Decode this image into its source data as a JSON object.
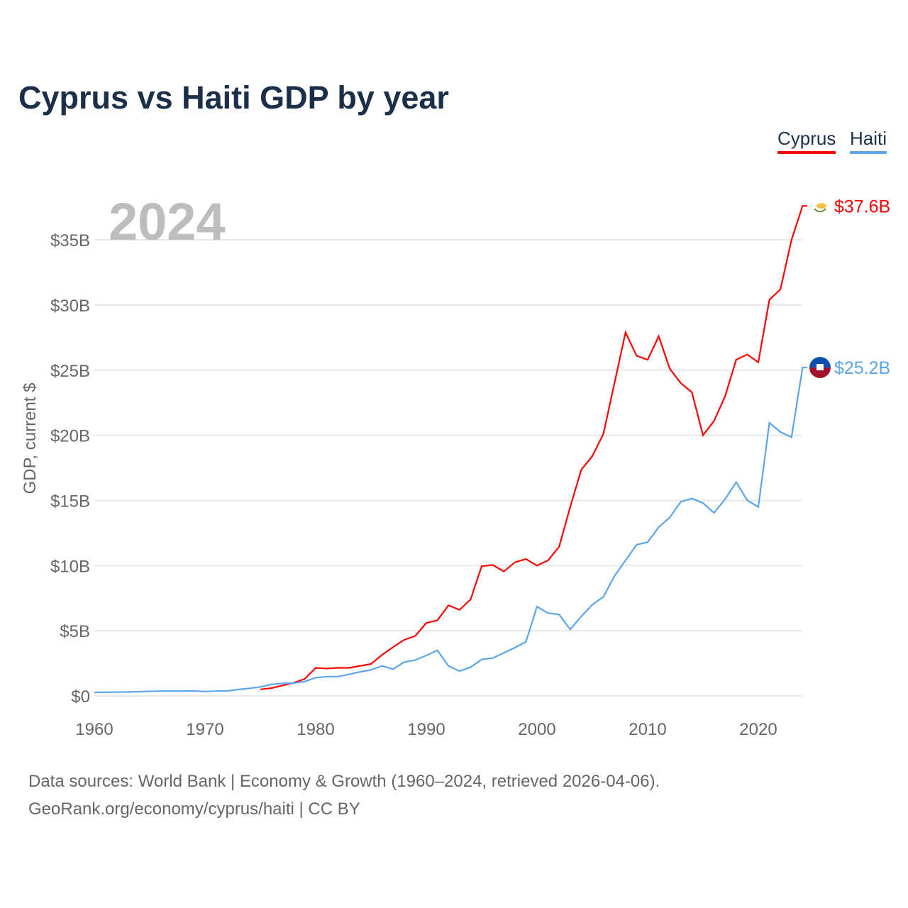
{
  "title": "Cyprus vs Haiti GDP by year",
  "legend": [
    {
      "label": "Cyprus",
      "color": "#ff0000"
    },
    {
      "label": "Haiti",
      "color": "#5aa5ec"
    }
  ],
  "source_line1": "Data sources: World Bank | Economy & Growth (1960–2024, retrieved 2026-04-06).",
  "source_line2": "GeoRank.org/economy/cyprus/haiti | CC BY",
  "chart_data": {
    "type": "line",
    "title": "Cyprus vs Haiti GDP by year",
    "xlabel": "",
    "ylabel": "GDP, current $",
    "year_label": "2024",
    "xlim": [
      1960,
      2024
    ],
    "ylim": [
      0,
      38
    ],
    "xticks": [
      1960,
      1970,
      1980,
      1990,
      2000,
      2010,
      2020
    ],
    "yticks": [
      0,
      5,
      10,
      15,
      20,
      25,
      30,
      35
    ],
    "ytick_labels": [
      "$0",
      "$5B",
      "$10B",
      "$15B",
      "$20B",
      "$25B",
      "$30B",
      "$35B"
    ],
    "grid": true,
    "legend_position": "top-right",
    "series": [
      {
        "name": "Cyprus",
        "color": "#ff0000",
        "end_label": "$37.6B",
        "start": 1975,
        "values": [
          0.5,
          0.6,
          0.8,
          1.0,
          1.3,
          2.15,
          2.1,
          2.15,
          2.15,
          2.3,
          2.45,
          3.15,
          3.75,
          4.3,
          4.6,
          5.6,
          5.8,
          6.95,
          6.6,
          7.4,
          9.95,
          10.05,
          9.55,
          10.25,
          10.5,
          10.0,
          10.4,
          11.45,
          14.5,
          17.35,
          18.4,
          20.1,
          24.0,
          27.9,
          26.1,
          25.8,
          27.6,
          25.1,
          24.0,
          23.3,
          20.0,
          21.1,
          23.0,
          25.8,
          26.2,
          25.6,
          30.4,
          31.2,
          35.0,
          37.6
        ]
      },
      {
        "name": "Haiti",
        "color": "#5aa5ec",
        "end_label": "$25.2B",
        "start": 1960,
        "values": [
          0.27,
          0.28,
          0.29,
          0.3,
          0.32,
          0.35,
          0.37,
          0.37,
          0.37,
          0.38,
          0.33,
          0.37,
          0.38,
          0.49,
          0.58,
          0.69,
          0.88,
          0.96,
          0.98,
          1.1,
          1.4,
          1.48,
          1.48,
          1.65,
          1.84,
          2.0,
          2.3,
          2.05,
          2.6,
          2.75,
          3.1,
          3.5,
          2.3,
          1.9,
          2.2,
          2.8,
          2.9,
          3.3,
          3.7,
          4.15,
          6.85,
          6.35,
          6.25,
          5.1,
          6.1,
          7.0,
          7.6,
          9.2,
          10.4,
          11.6,
          11.8,
          12.95,
          13.7,
          14.9,
          15.15,
          14.8,
          14.05,
          15.1,
          16.4,
          15.0,
          14.5,
          20.95,
          20.25,
          19.85,
          25.2
        ]
      }
    ]
  }
}
